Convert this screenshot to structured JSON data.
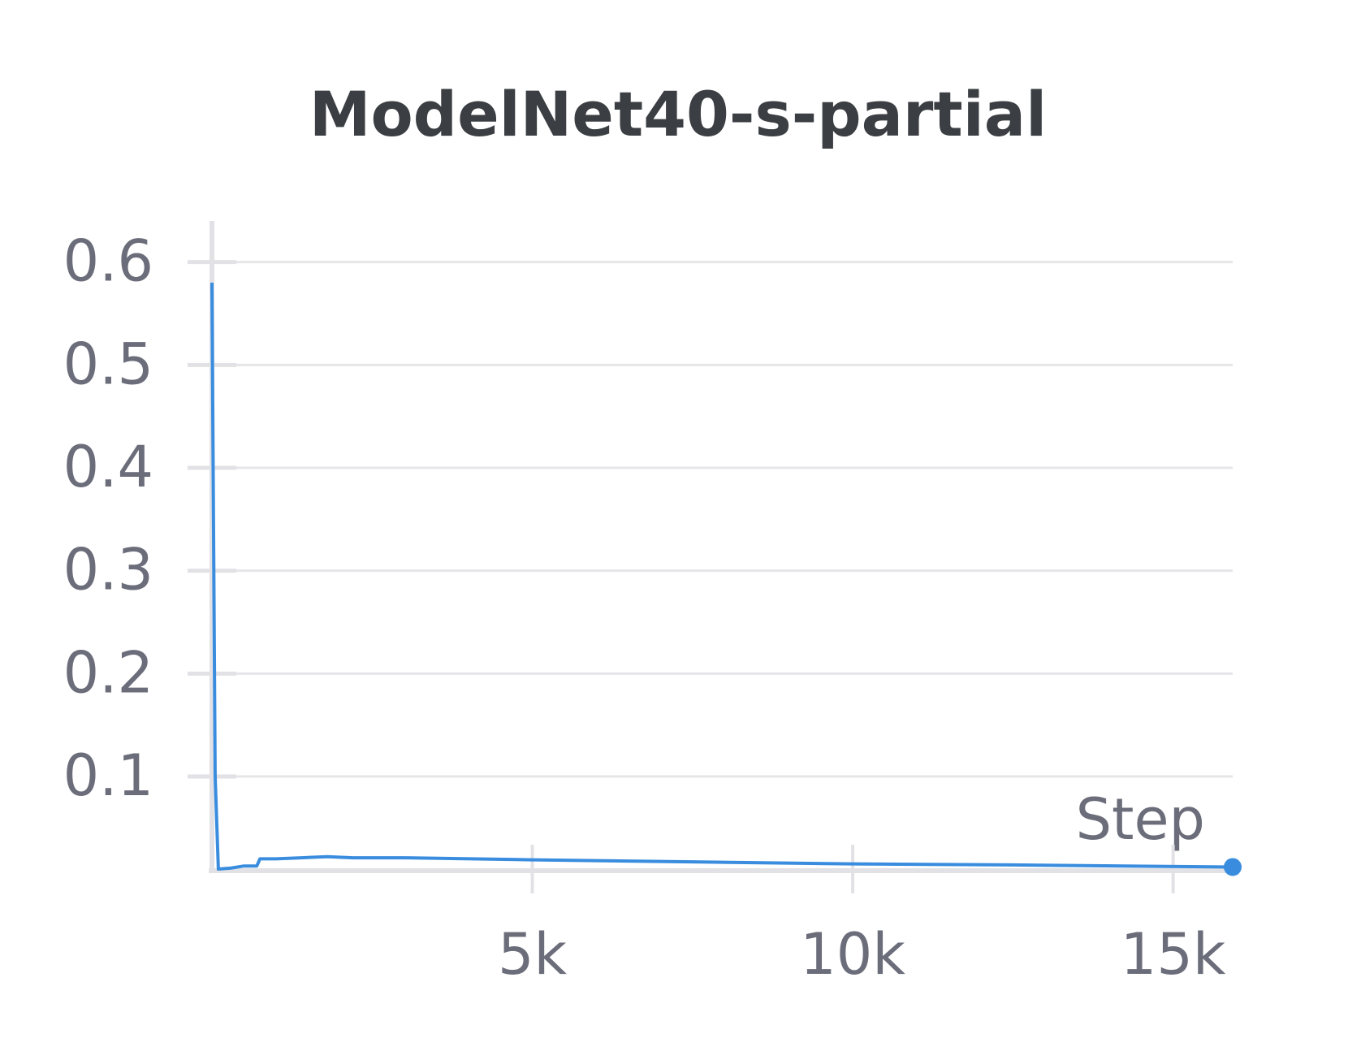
{
  "chart_data": {
    "type": "line",
    "title": "ModelNet40-s-partial",
    "x_label": "Step",
    "x": [
      0,
      50,
      100,
      300,
      500,
      700,
      750,
      1000,
      1400,
      1800,
      2200,
      3000,
      5000,
      7500,
      10000,
      12500,
      15930
    ],
    "series": [
      {
        "color": "#3a8dde",
        "values": [
          0.58,
          0.1,
          0.01,
          0.011,
          0.013,
          0.013,
          0.02,
          0.02,
          0.021,
          0.022,
          0.021,
          0.021,
          0.019,
          0.017,
          0.015,
          0.014,
          0.012
        ]
      }
    ],
    "xlim": [
      0,
      15930
    ],
    "ylim": [
      0.01,
      0.64
    ],
    "xticks": [
      {
        "value": 5000,
        "label": "5k"
      },
      {
        "value": 10000,
        "label": "10k"
      },
      {
        "value": 15000,
        "label": "15k"
      }
    ],
    "yticks": [
      0.1,
      0.2,
      0.3,
      0.4,
      0.5,
      0.6
    ],
    "grid": true
  }
}
